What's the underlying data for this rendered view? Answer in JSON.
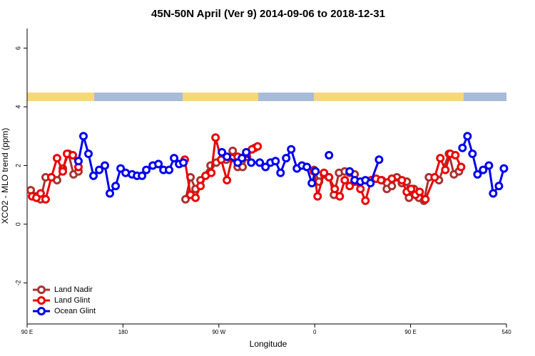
{
  "chart_data": {
    "type": "line",
    "title": "45N-50N April (Ver 9)   2014-09-06 to 2018-12-31",
    "x_label": "Longitude",
    "y_label": "XCO2 - MLO trend (ppm)",
    "xlim": [
      90,
      540
    ],
    "xticks": [
      {
        "value": 90,
        "label": "90 E"
      },
      180,
      {
        "value": 270,
        "label": "90 W"
      },
      {
        "value": 360,
        "label": "0"
      },
      {
        "value": 450,
        "label": "90 E"
      },
      540
    ],
    "ylim": [
      -3.4,
      6.67
    ],
    "yticks": [
      -2,
      0,
      2,
      4,
      6
    ],
    "legend": "bottom-left",
    "series": [
      {
        "name": "Land Nadir",
        "color": "#a83232",
        "x": [
          93.4,
          97.4,
          102.7,
          107.4,
          112.8,
          118.1,
          123.5,
          128.9,
          133.6,
          138.2,
          null,
          238.7,
          243.4,
          248.1,
          252.8,
          262.2,
          267.6,
          276.9,
          283,
          287.7,
          292.3,
          296.4,
          303.7,
          null,
          359.3,
          364,
          368.7,
          373.4,
          378.1,
          382.8,
          388.2,
          392.8,
          397.5,
          null,
          423,
          427.7,
          432.4,
          437.1,
          441.8,
          446.4,
          448.5,
          453.1,
          457.8,
          462.5,
          467.2,
          476.6,
          486,
          490.7,
          495.4
        ],
        "values": [
          1.16,
          0.95,
          0.85,
          1.6,
          1.6,
          1.5,
          1.9,
          2.4,
          1.7,
          1.8,
          null,
          0.85,
          1.6,
          1.2,
          1.5,
          2.0,
          2.1,
          2.2,
          2.5,
          1.95,
          1.95,
          2.3,
          2.6,
          null,
          1.85,
          1.45,
          1.7,
          1.6,
          1.0,
          1.75,
          1.8,
          1.75,
          1.7,
          null,
          1.5,
          1.2,
          1.3,
          1.6,
          1.4,
          1.45,
          0.9,
          1.2,
          0.9,
          0.8,
          1.6,
          1.5,
          2.4,
          1.7,
          1.8
        ]
      },
      {
        "name": "Land Glint",
        "color": "#ee0000",
        "x": [
          94.7,
          98.7,
          102.7,
          107.4,
          112.8,
          118.1,
          123.5,
          127.5,
          132.9,
          138.2,
          null,
          238,
          243.4,
          248.1,
          252.8,
          257.5,
          262.9,
          266.9,
          272.2,
          277.6,
          282.3,
          287.7,
          295.7,
          301.1,
          306.4,
          null,
          359.3,
          362.7,
          368.7,
          373.4,
          378.8,
          383.5,
          388.2,
          392.8,
          397.5,
          402.9,
          407.6,
          413,
          417.6,
          422.3,
          432.4,
          441.8,
          446.4,
          450.5,
          454.5,
          458.5,
          463.9,
          472.6,
          477.9,
          482.6,
          487.3,
          492,
          497.4
        ],
        "values": [
          0.95,
          0.9,
          1.05,
          0.85,
          1.6,
          2.25,
          1.8,
          2.4,
          2.35,
          1.95,
          null,
          2.2,
          1.0,
          0.9,
          1.3,
          1.65,
          1.75,
          2.95,
          2.2,
          1.5,
          2.25,
          2.3,
          2.4,
          2.55,
          2.65,
          null,
          1.8,
          0.95,
          1.75,
          1.6,
          1.2,
          0.95,
          1.5,
          1.3,
          1.45,
          1.2,
          0.8,
          1.5,
          1.55,
          1.5,
          1.55,
          1.5,
          1.1,
          1.2,
          1.0,
          1.1,
          0.85,
          1.6,
          2.25,
          1.85,
          2.4,
          2.35,
          1.95
        ]
      },
      {
        "name": "Ocean Glint",
        "color": "#0000ee",
        "x": [
          138.2,
          142.9,
          147.6,
          152.3,
          157.7,
          163,
          167.7,
          173.1,
          177.8,
          182.5,
          188.5,
          193.2,
          197.9,
          201.9,
          208,
          213.3,
          218,
          223.3,
          228,
          232.7,
          236.7,
          null,
          272.9,
          277.6,
          287.7,
          291.7,
          295.7,
          300.4,
          308.4,
          313.8,
          318.5,
          323.2,
          327.9,
          333.2,
          337.9,
          343.3,
          348,
          352.6,
          357.3,
          360.7,
          null,
          373.4,
          null,
          392.8,
          397.5,
          402.9,
          407.6,
          412.3,
          420.4,
          null,
          498.7,
          503.4,
          508.1,
          512.8,
          518.1,
          523.5,
          527.5,
          532.9,
          537.6
        ],
        "values": [
          2.15,
          3.0,
          2.4,
          1.65,
          1.85,
          2.0,
          1.05,
          1.3,
          1.9,
          1.75,
          1.7,
          1.65,
          1.65,
          1.85,
          2.0,
          2.05,
          1.85,
          1.85,
          2.25,
          2.05,
          2.1,
          null,
          2.45,
          2.3,
          2.1,
          2.25,
          2.45,
          2.1,
          2.1,
          1.95,
          2.1,
          2.15,
          1.75,
          2.25,
          2.55,
          1.9,
          2.0,
          1.95,
          1.4,
          1.8,
          null,
          2.35,
          null,
          1.8,
          1.5,
          1.45,
          1.5,
          1.4,
          2.2,
          null,
          2.6,
          3.0,
          2.4,
          1.7,
          1.85,
          2.0,
          1.05,
          1.3,
          1.9
        ]
      }
    ]
  }
}
